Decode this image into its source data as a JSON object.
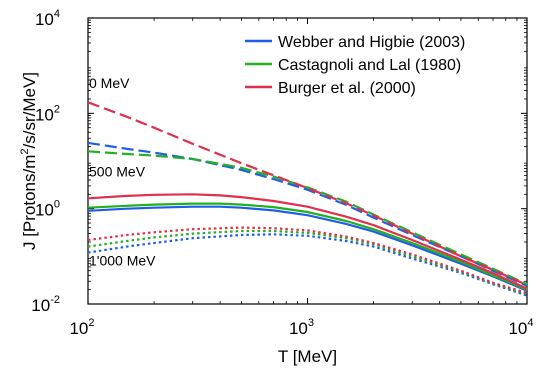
{
  "chart_data": {
    "type": "line",
    "xlabel": "T [MeV]",
    "ylabel": {
      "part1": "J [Protons/m",
      "sup": "2",
      "part2": "/s/sr/MeV]"
    },
    "x_scale": "log",
    "y_scale": "log",
    "xlim": [
      100,
      10000
    ],
    "ylim": [
      0.01,
      10000
    ],
    "x_ticks": [
      {
        "base": "10",
        "exp": "2",
        "value": 100
      },
      {
        "base": "10",
        "exp": "3",
        "value": 1000
      },
      {
        "base": "10",
        "exp": "4",
        "value": 10000
      }
    ],
    "y_ticks": [
      {
        "base": "10",
        "exp": "-2",
        "value": 0.01
      },
      {
        "base": "10",
        "exp": "0",
        "value": 1
      },
      {
        "base": "10",
        "exp": "2",
        "value": 100
      },
      {
        "base": "10",
        "exp": "4",
        "value": 10000
      }
    ],
    "grid": false,
    "legend_position": "top-right",
    "annotations": [
      {
        "text": "0 MeV",
        "x": 100,
        "y": 340
      },
      {
        "text": "500 MeV",
        "x": 100,
        "y": 4.7
      },
      {
        "text": "1'000 MeV",
        "x": 100,
        "y": 0.065
      }
    ],
    "series": [
      {
        "name": "Webber and Higbie (2003)",
        "color": "#1f5ee6",
        "group": "webber",
        "style": "dashed",
        "x": [
          100,
          150,
          200,
          300,
          500,
          700,
          1000,
          1500,
          2000,
          3000,
          5000,
          7000,
          10000
        ],
        "y": [
          24,
          18,
          15,
          11,
          6.5,
          4.2,
          2.5,
          1.2,
          0.65,
          0.28,
          0.1,
          0.05,
          0.024
        ]
      },
      {
        "name": "Castagnoli and Lal (1980)",
        "color": "#22b022",
        "group": "castagnoli",
        "style": "dashed",
        "x": [
          100,
          150,
          200,
          300,
          500,
          700,
          1000,
          1500,
          2000,
          3000,
          5000,
          7000,
          10000
        ],
        "y": [
          16,
          14,
          13,
          11,
          7.2,
          4.7,
          2.8,
          1.4,
          0.75,
          0.32,
          0.11,
          0.055,
          0.026
        ]
      },
      {
        "name": "Burger et al. (2000)",
        "color": "#e0304e",
        "group": "burger",
        "style": "dashed",
        "x": [
          100,
          150,
          200,
          300,
          500,
          700,
          1000,
          1500,
          2000,
          3000,
          5000,
          7000,
          10000
        ],
        "y": [
          170,
          85,
          50,
          23,
          9,
          5,
          2.7,
          1.3,
          0.72,
          0.3,
          0.1,
          0.052,
          0.025
        ]
      },
      {
        "color": "#1f5ee6",
        "group": "webber",
        "style": "solid",
        "x": [
          100,
          150,
          200,
          300,
          400,
          500,
          700,
          1000,
          1500,
          2000,
          3000,
          5000,
          7000,
          10000
        ],
        "y": [
          0.9,
          1.0,
          1.05,
          1.1,
          1.1,
          1.05,
          0.92,
          0.73,
          0.48,
          0.33,
          0.17,
          0.07,
          0.038,
          0.019
        ]
      },
      {
        "color": "#22b022",
        "group": "castagnoli",
        "style": "solid",
        "x": [
          100,
          150,
          200,
          300,
          400,
          500,
          700,
          1000,
          1500,
          2000,
          3000,
          5000,
          7000,
          10000
        ],
        "y": [
          1.05,
          1.15,
          1.22,
          1.28,
          1.28,
          1.22,
          1.08,
          0.85,
          0.55,
          0.37,
          0.19,
          0.077,
          0.04,
          0.02
        ]
      },
      {
        "color": "#e0304e",
        "group": "burger",
        "style": "solid",
        "x": [
          100,
          150,
          200,
          300,
          400,
          500,
          700,
          1000,
          1500,
          2000,
          3000,
          5000,
          7000,
          10000
        ],
        "y": [
          1.65,
          1.85,
          1.95,
          2.0,
          1.9,
          1.75,
          1.45,
          1.1,
          0.68,
          0.45,
          0.22,
          0.085,
          0.044,
          0.021
        ]
      },
      {
        "color": "#1f5ee6",
        "group": "webber",
        "style": "dotted",
        "x": [
          100,
          150,
          200,
          300,
          500,
          700,
          1000,
          1500,
          2000,
          3000,
          5000,
          7000,
          10000
        ],
        "y": [
          0.12,
          0.16,
          0.19,
          0.24,
          0.28,
          0.29,
          0.27,
          0.21,
          0.16,
          0.09,
          0.045,
          0.026,
          0.015
        ]
      },
      {
        "color": "#22b022",
        "group": "castagnoli",
        "style": "dotted",
        "x": [
          100,
          150,
          200,
          300,
          500,
          700,
          1000,
          1500,
          2000,
          3000,
          5000,
          7000,
          10000
        ],
        "y": [
          0.16,
          0.21,
          0.25,
          0.3,
          0.34,
          0.34,
          0.31,
          0.24,
          0.18,
          0.1,
          0.048,
          0.027,
          0.016
        ]
      },
      {
        "color": "#e0304e",
        "group": "burger",
        "style": "dotted",
        "x": [
          100,
          150,
          200,
          300,
          500,
          700,
          1000,
          1500,
          2000,
          3000,
          5000,
          7000,
          10000
        ],
        "y": [
          0.22,
          0.28,
          0.32,
          0.37,
          0.4,
          0.39,
          0.35,
          0.26,
          0.19,
          0.11,
          0.05,
          0.028,
          0.017
        ]
      }
    ]
  }
}
